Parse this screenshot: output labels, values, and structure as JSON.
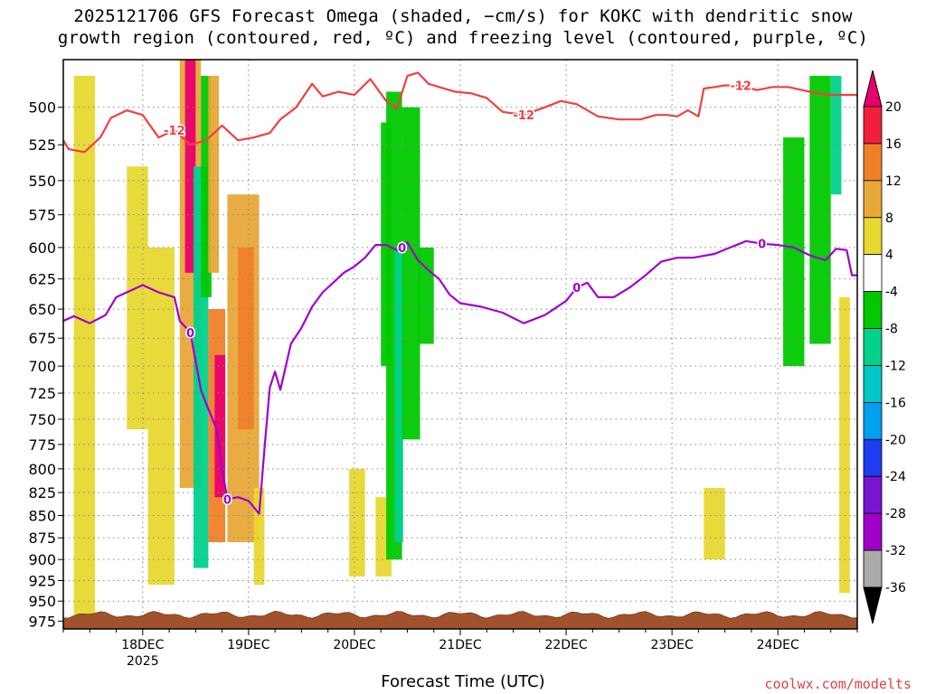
{
  "header": {
    "title": "2025121706 GFS Forecast Omega (shaded, −cm/s) for KOKC with dendritic snow\ngrowth region (contoured, red, ºC) and freezing level (contoured, purple, ºC)"
  },
  "footer": {
    "xlabel": "Forecast Time (UTC)",
    "credit": "coolwx.com/modelts"
  },
  "chart_data": {
    "type": "heatmap",
    "title": "2025121706 GFS Forecast Omega (shaded, −cm/s) for KOKC with dendritic snow growth region (contoured, red, ºC) and freezing level (contoured, purple, ºC)",
    "xlabel": "Forecast Time (UTC)",
    "ylabel": "",
    "y_axis": {
      "scale": "log-pressure",
      "inverted": true,
      "ticks": [
        500,
        525,
        550,
        575,
        600,
        625,
        650,
        675,
        700,
        725,
        750,
        775,
        800,
        825,
        850,
        875,
        900,
        925,
        950,
        975
      ],
      "range_hPa": [
        470,
        985
      ]
    },
    "x_axis": {
      "range_days_dec": [
        17.25,
        24.75
      ],
      "ticks": [
        {
          "value": 18,
          "label": "18DEC",
          "sublabel": "2025"
        },
        {
          "value": 19,
          "label": "19DEC",
          "sublabel": ""
        },
        {
          "value": 20,
          "label": "20DEC",
          "sublabel": ""
        },
        {
          "value": 21,
          "label": "21DEC",
          "sublabel": ""
        },
        {
          "value": 22,
          "label": "22DEC",
          "sublabel": ""
        },
        {
          "value": 23,
          "label": "23DEC",
          "sublabel": ""
        },
        {
          "value": 24,
          "label": "24DEC",
          "sublabel": ""
        }
      ]
    },
    "grid": true,
    "colorbar": {
      "placement": "right",
      "levels": [
        20,
        16,
        12,
        8,
        4,
        -4,
        -8,
        -12,
        -16,
        -20,
        -24,
        -28,
        -32,
        -36
      ],
      "colors": [
        "#e8006e",
        "#f0203c",
        "#f08028",
        "#e8a838",
        "#e8d830",
        "#ffffff",
        "#00c800",
        "#00d28c",
        "#00c8c8",
        "#00a0f0",
        "#1e3cf0",
        "#7814d2",
        "#a000c8",
        "#aaaaaa"
      ],
      "top_color": "#e8006e",
      "bottom_color": "#000000"
    },
    "contour_labels": {
      "dgz_red": "-12",
      "freezing_purple": "0"
    },
    "series": [
      {
        "name": "dgz_-12C",
        "color": "#f04040",
        "points": [
          [
            17.25,
            522
          ],
          [
            17.3,
            528
          ],
          [
            17.45,
            530
          ],
          [
            17.6,
            520
          ],
          [
            17.7,
            507
          ],
          [
            17.85,
            502
          ],
          [
            18.0,
            505
          ],
          [
            18.15,
            520
          ],
          [
            18.3,
            515
          ],
          [
            18.45,
            525
          ],
          [
            18.6,
            522
          ],
          [
            18.75,
            512
          ],
          [
            18.9,
            522
          ],
          [
            19.05,
            520
          ],
          [
            19.2,
            517
          ],
          [
            19.3,
            508
          ],
          [
            19.45,
            500
          ],
          [
            19.6,
            485
          ],
          [
            19.7,
            493
          ],
          [
            19.85,
            490
          ],
          [
            20.0,
            492
          ],
          [
            20.15,
            482
          ],
          [
            20.3,
            496
          ],
          [
            20.4,
            501
          ],
          [
            20.5,
            480
          ],
          [
            20.6,
            478
          ],
          [
            20.7,
            485
          ],
          [
            20.8,
            487
          ],
          [
            20.95,
            490
          ],
          [
            21.1,
            491
          ],
          [
            21.25,
            494
          ],
          [
            21.4,
            503
          ],
          [
            21.6,
            505
          ],
          [
            21.8,
            500
          ],
          [
            21.95,
            496
          ],
          [
            22.1,
            498
          ],
          [
            22.3,
            506
          ],
          [
            22.5,
            508
          ],
          [
            22.7,
            508
          ],
          [
            22.85,
            505
          ],
          [
            22.95,
            505
          ],
          [
            23.05,
            506
          ],
          [
            23.15,
            502
          ],
          [
            23.25,
            506
          ],
          [
            23.3,
            488
          ],
          [
            23.4,
            487
          ],
          [
            23.5,
            486
          ],
          [
            23.65,
            486
          ],
          [
            23.8,
            489
          ],
          [
            23.95,
            487
          ],
          [
            24.1,
            487
          ],
          [
            24.3,
            490
          ],
          [
            24.45,
            492
          ],
          [
            24.6,
            492
          ],
          [
            24.75,
            492
          ]
        ]
      },
      {
        "name": "freezing_0C",
        "color": "#a000d0",
        "points": [
          [
            17.25,
            660
          ],
          [
            17.35,
            656
          ],
          [
            17.5,
            662
          ],
          [
            17.65,
            655
          ],
          [
            17.75,
            640
          ],
          [
            17.85,
            636
          ],
          [
            18.0,
            630
          ],
          [
            18.15,
            636
          ],
          [
            18.3,
            640
          ],
          [
            18.35,
            660
          ],
          [
            18.45,
            670
          ],
          [
            18.55,
            722
          ],
          [
            18.6,
            735
          ],
          [
            18.7,
            760
          ],
          [
            18.75,
            800
          ],
          [
            18.8,
            832
          ],
          [
            18.9,
            830
          ],
          [
            19.0,
            834
          ],
          [
            19.1,
            848
          ],
          [
            19.15,
            780
          ],
          [
            19.2,
            720
          ],
          [
            19.25,
            705
          ],
          [
            19.3,
            722
          ],
          [
            19.4,
            680
          ],
          [
            19.5,
            666
          ],
          [
            19.6,
            648
          ],
          [
            19.7,
            636
          ],
          [
            19.8,
            628
          ],
          [
            19.9,
            620
          ],
          [
            20.0,
            615
          ],
          [
            20.1,
            608
          ],
          [
            20.2,
            598
          ],
          [
            20.3,
            598
          ],
          [
            20.4,
            602
          ],
          [
            20.5,
            596
          ],
          [
            20.6,
            610
          ],
          [
            20.7,
            618
          ],
          [
            20.8,
            625
          ],
          [
            20.9,
            638
          ],
          [
            21.0,
            645
          ],
          [
            21.2,
            648
          ],
          [
            21.4,
            653
          ],
          [
            21.6,
            662
          ],
          [
            21.8,
            655
          ],
          [
            22.0,
            643
          ],
          [
            22.1,
            632
          ],
          [
            22.2,
            628
          ],
          [
            22.3,
            640
          ],
          [
            22.45,
            640
          ],
          [
            22.6,
            632
          ],
          [
            22.75,
            622
          ],
          [
            22.9,
            611
          ],
          [
            23.05,
            608
          ],
          [
            23.2,
            608
          ],
          [
            23.4,
            605
          ],
          [
            23.55,
            600
          ],
          [
            23.7,
            595
          ],
          [
            23.85,
            597
          ],
          [
            24.0,
            598
          ],
          [
            24.15,
            600
          ],
          [
            24.3,
            606
          ],
          [
            24.45,
            610
          ],
          [
            24.55,
            601
          ],
          [
            24.65,
            602
          ],
          [
            24.7,
            622
          ],
          [
            24.75,
            622
          ]
        ]
      }
    ],
    "shaded_cells": [
      {
        "x": [
          17.35,
          17.55
        ],
        "p": [
          480,
          980
        ],
        "level": 4
      },
      {
        "x": [
          17.85,
          18.05
        ],
        "p": [
          540,
          760
        ],
        "level": 4
      },
      {
        "x": [
          18.05,
          18.3
        ],
        "p": [
          600,
          930
        ],
        "level": 4
      },
      {
        "x": [
          18.35,
          18.55
        ],
        "p": [
          470,
          820
        ],
        "level": 8
      },
      {
        "x": [
          18.4,
          18.5
        ],
        "p": [
          470,
          620
        ],
        "level": 20
      },
      {
        "x": [
          18.48,
          18.62
        ],
        "p": [
          540,
          910
        ],
        "level": -12
      },
      {
        "x": [
          18.55,
          18.65
        ],
        "p": [
          480,
          640
        ],
        "level": -8
      },
      {
        "x": [
          18.62,
          18.72
        ],
        "p": [
          480,
          620
        ],
        "level": 8
      },
      {
        "x": [
          18.62,
          18.78
        ],
        "p": [
          650,
          880
        ],
        "level": 12
      },
      {
        "x": [
          18.68,
          18.78
        ],
        "p": [
          690,
          830
        ],
        "level": 20
      },
      {
        "x": [
          18.8,
          19.1
        ],
        "p": [
          560,
          880
        ],
        "level": 8
      },
      {
        "x": [
          18.9,
          19.05
        ],
        "p": [
          600,
          760
        ],
        "level": 12
      },
      {
        "x": [
          19.05,
          19.15
        ],
        "p": [
          820,
          930
        ],
        "level": 4
      },
      {
        "x": [
          19.95,
          20.1
        ],
        "p": [
          800,
          920
        ],
        "level": 4
      },
      {
        "x": [
          20.2,
          20.35
        ],
        "p": [
          830,
          920
        ],
        "level": 4
      },
      {
        "x": [
          20.25,
          20.35
        ],
        "p": [
          510,
          700
        ],
        "level": -8
      },
      {
        "x": [
          20.3,
          20.45
        ],
        "p": [
          490,
          900
        ],
        "level": -8
      },
      {
        "x": [
          20.38,
          20.46
        ],
        "p": [
          600,
          880
        ],
        "level": -12
      },
      {
        "x": [
          20.45,
          20.62
        ],
        "p": [
          500,
          770
        ],
        "level": -8
      },
      {
        "x": [
          20.6,
          20.75
        ],
        "p": [
          600,
          680
        ],
        "level": -8
      },
      {
        "x": [
          23.3,
          23.5
        ],
        "p": [
          820,
          900
        ],
        "level": 4
      },
      {
        "x": [
          24.05,
          24.25
        ],
        "p": [
          520,
          700
        ],
        "level": -8
      },
      {
        "x": [
          24.3,
          24.5
        ],
        "p": [
          480,
          680
        ],
        "level": -8
      },
      {
        "x": [
          24.5,
          24.6
        ],
        "p": [
          480,
          560
        ],
        "level": -12
      },
      {
        "x": [
          24.58,
          24.68
        ],
        "p": [
          640,
          940
        ],
        "level": 4
      }
    ],
    "terrain": {
      "color": "#a0522d",
      "pressure_hPa": 967
    }
  }
}
